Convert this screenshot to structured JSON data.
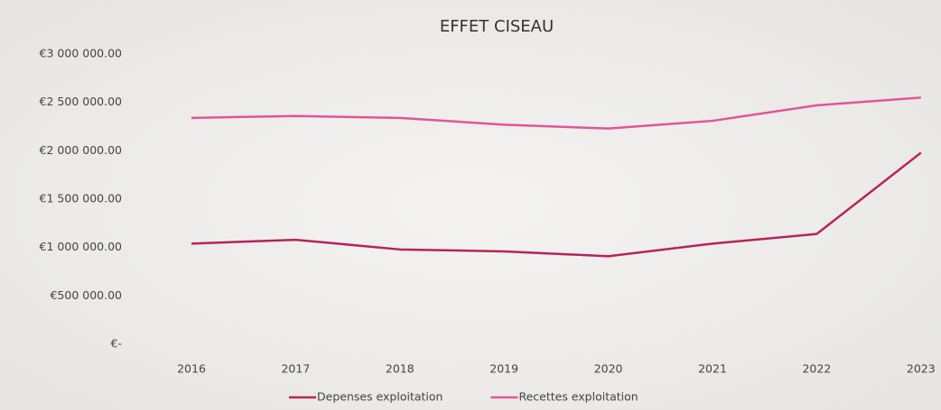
{
  "chart_data": {
    "type": "line",
    "title": "EFFET CISEAU",
    "categories": [
      "2016",
      "2017",
      "2018",
      "2019",
      "2020",
      "2021",
      "2022",
      "2023"
    ],
    "series": [
      {
        "name": "Depenses exploitation",
        "color": "#b5245a",
        "values": [
          1040000,
          1080000,
          980000,
          960000,
          910000,
          1040000,
          1140000,
          1980000
        ]
      },
      {
        "name": "Recettes exploitation",
        "color": "#e0559a",
        "values": [
          2340000,
          2360000,
          2340000,
          2270000,
          2230000,
          2310000,
          2470000,
          2550000
        ]
      }
    ],
    "ylim": [
      0,
      3000000
    ],
    "yticks": [
      {
        "value": 0,
        "label": "€-"
      },
      {
        "value": 500000,
        "label": "€500 000.00"
      },
      {
        "value": 1000000,
        "label": "€1 000 000.00"
      },
      {
        "value": 1500000,
        "label": "€1 500 000.00"
      },
      {
        "value": 2000000,
        "label": "€2 000 000.00"
      },
      {
        "value": 2500000,
        "label": "€2 500 000.00"
      },
      {
        "value": 3000000,
        "label": "€3 000 000.00"
      }
    ],
    "grid": false,
    "legend": "bottom"
  }
}
